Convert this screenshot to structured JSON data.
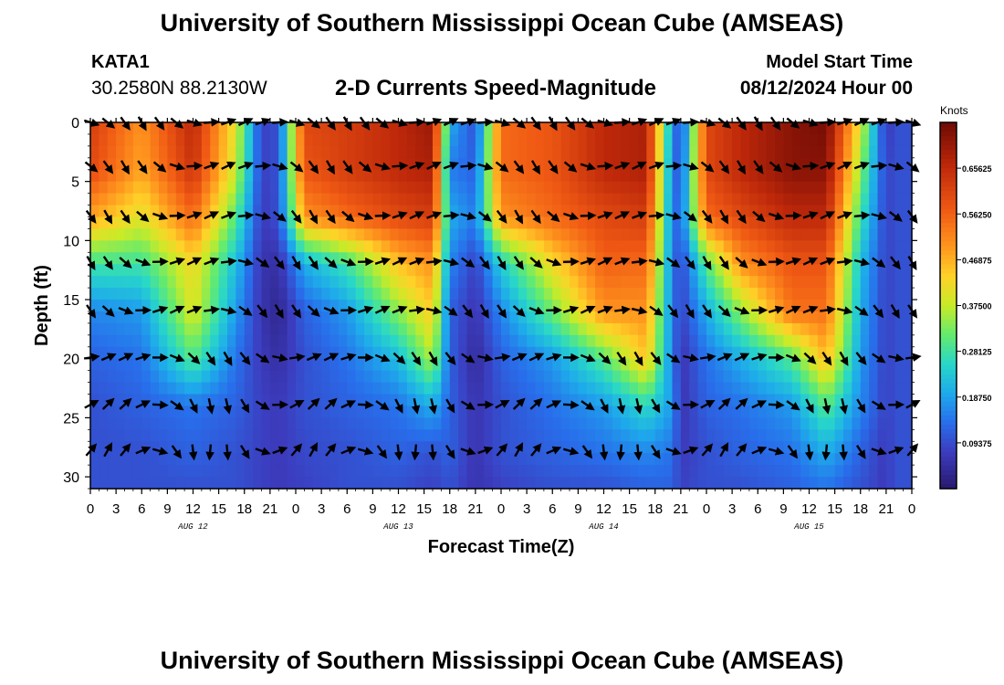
{
  "header": {
    "title": "University of Southern Mississippi Ocean Cube (AMSEAS)",
    "station_id": "KATA1",
    "station_coords": "30.2580N  88.2130W",
    "subtitle": "2-D Currents Speed-Magnitude",
    "model_start_label": "Model Start Time",
    "model_start_value": "08/12/2024 Hour 00"
  },
  "footer": {
    "title_repeat": "University of Southern Mississippi Ocean Cube (AMSEAS)"
  },
  "chart_data": {
    "type": "heatmap",
    "title": "2-D Currents Speed-Magnitude",
    "xlabel": "Forecast Time(Z)",
    "ylabel": "Depth (ft)",
    "x_range_hours": [
      0,
      96
    ],
    "x_tick_step_hours": 3,
    "x_tick_labels": [
      "0",
      "3",
      "6",
      "9",
      "12",
      "15",
      "18",
      "21",
      "0",
      "3",
      "6",
      "9",
      "12",
      "15",
      "18",
      "21",
      "0",
      "3",
      "6",
      "9",
      "12",
      "15",
      "18",
      "21",
      "0",
      "3",
      "6",
      "9",
      "12",
      "15",
      "18",
      "21",
      "0"
    ],
    "date_labels": [
      {
        "hour": 12,
        "label": "AUG 12"
      },
      {
        "hour": 36,
        "label": "AUG 13"
      },
      {
        "hour": 60,
        "label": "AUG 14"
      },
      {
        "hour": 84,
        "label": "AUG 15"
      }
    ],
    "y_range_ft": [
      0,
      31
    ],
    "y_ticks": [
      0,
      5,
      10,
      15,
      20,
      25,
      30
    ],
    "y_tick_labels": [
      "0",
      "5",
      "10",
      "15",
      "20",
      "25",
      "30"
    ],
    "colorbar": {
      "unit": "Knots",
      "min": 0,
      "max": 0.75,
      "tick_values": [
        0.09375,
        0.1875,
        0.28125,
        0.375,
        0.46875,
        0.5625,
        0.65625
      ],
      "tick_labels": [
        "0.09375",
        "0.18750",
        "0.28125",
        "0.37500",
        "0.46875",
        "0.56250",
        "0.65625"
      ]
    },
    "speed_field": {
      "depths_ft": [
        0,
        4,
        8,
        12,
        16,
        20,
        24,
        28,
        31
      ],
      "hours": [
        0,
        6,
        12,
        17,
        20,
        22,
        25,
        30,
        36,
        40,
        42,
        45,
        48,
        54,
        60,
        65,
        68,
        69,
        72,
        76,
        82,
        86,
        90,
        93,
        94,
        96
      ],
      "values": [
        [
          0.62,
          0.5,
          0.66,
          0.4,
          0.08,
          0.1,
          0.6,
          0.62,
          0.66,
          0.7,
          0.2,
          0.1,
          0.55,
          0.58,
          0.66,
          0.68,
          0.18,
          0.08,
          0.6,
          0.66,
          0.72,
          0.74,
          0.4,
          0.06,
          0.1,
          0.1
        ],
        [
          0.6,
          0.48,
          0.64,
          0.38,
          0.08,
          0.1,
          0.58,
          0.62,
          0.66,
          0.68,
          0.15,
          0.12,
          0.55,
          0.58,
          0.66,
          0.68,
          0.15,
          0.1,
          0.6,
          0.66,
          0.72,
          0.72,
          0.34,
          0.08,
          0.1,
          0.1
        ],
        [
          0.48,
          0.4,
          0.55,
          0.3,
          0.07,
          0.1,
          0.5,
          0.55,
          0.6,
          0.62,
          0.2,
          0.15,
          0.5,
          0.55,
          0.6,
          0.62,
          0.15,
          0.12,
          0.55,
          0.6,
          0.66,
          0.66,
          0.28,
          0.08,
          0.1,
          0.1
        ],
        [
          0.28,
          0.28,
          0.42,
          0.22,
          0.06,
          0.05,
          0.2,
          0.28,
          0.45,
          0.5,
          0.16,
          0.08,
          0.24,
          0.42,
          0.56,
          0.55,
          0.15,
          0.08,
          0.3,
          0.5,
          0.58,
          0.58,
          0.22,
          0.08,
          0.1,
          0.1
        ],
        [
          0.16,
          0.18,
          0.4,
          0.18,
          0.06,
          0.03,
          0.12,
          0.18,
          0.34,
          0.44,
          0.12,
          0.06,
          0.16,
          0.32,
          0.5,
          0.5,
          0.15,
          0.08,
          0.2,
          0.34,
          0.54,
          0.54,
          0.2,
          0.08,
          0.1,
          0.1
        ],
        [
          0.12,
          0.14,
          0.3,
          0.14,
          0.07,
          0.05,
          0.1,
          0.14,
          0.22,
          0.36,
          0.12,
          0.04,
          0.12,
          0.18,
          0.3,
          0.45,
          0.15,
          0.06,
          0.14,
          0.2,
          0.3,
          0.46,
          0.18,
          0.08,
          0.1,
          0.1
        ],
        [
          0.1,
          0.12,
          0.14,
          0.12,
          0.08,
          0.07,
          0.1,
          0.12,
          0.14,
          0.2,
          0.12,
          0.06,
          0.1,
          0.14,
          0.18,
          0.26,
          0.18,
          0.06,
          0.12,
          0.14,
          0.18,
          0.3,
          0.16,
          0.08,
          0.1,
          0.1
        ],
        [
          0.1,
          0.1,
          0.12,
          0.1,
          0.08,
          0.07,
          0.09,
          0.1,
          0.12,
          0.1,
          0.12,
          0.06,
          0.1,
          0.12,
          0.14,
          0.16,
          0.14,
          0.07,
          0.1,
          0.12,
          0.14,
          0.2,
          0.12,
          0.07,
          0.1,
          0.1
        ],
        [
          0.1,
          0.1,
          0.1,
          0.1,
          0.08,
          0.07,
          0.08,
          0.1,
          0.1,
          0.08,
          0.1,
          0.06,
          0.08,
          0.1,
          0.1,
          0.12,
          0.12,
          0.08,
          0.1,
          0.1,
          0.12,
          0.14,
          0.1,
          0.07,
          0.1,
          0.1
        ]
      ]
    },
    "vector_field": {
      "depths_ft": [
        0,
        3.7,
        7.9,
        11.8,
        15.9,
        19.9,
        23.9,
        27.8
      ],
      "hour_step": 2,
      "hours_first": 0,
      "hours_last": 96,
      "directions": "mostly east-southeast (ebb/flood alternating with roughly 24 h tidal period)"
    }
  }
}
